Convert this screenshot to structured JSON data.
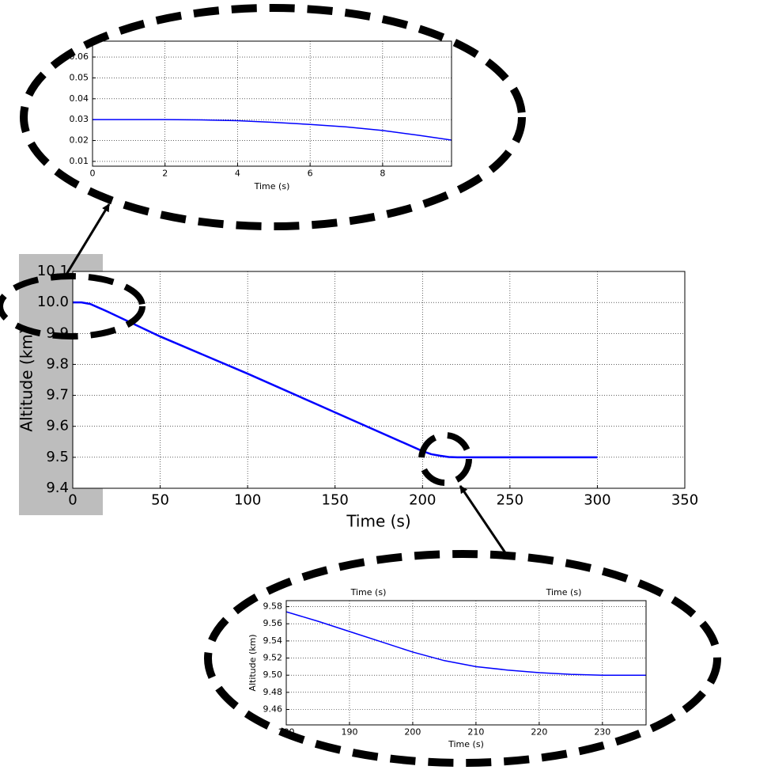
{
  "chart_data": [
    {
      "type": "line",
      "x_label": "Time (s)",
      "y_label": "Altitude (km)",
      "x": [
        0,
        5,
        10,
        20,
        50,
        100,
        150,
        200,
        205,
        210,
        215,
        220,
        250,
        300
      ],
      "series": [
        {
          "color": "#0000ff",
          "values": [
            10.0,
            10.0,
            9.995,
            9.97,
            9.89,
            9.77,
            9.645,
            9.52,
            9.51,
            9.505,
            9.501,
            9.5,
            9.5,
            9.5
          ]
        }
      ],
      "xlim": [
        0,
        350
      ],
      "xticks": [
        0,
        50,
        100,
        150,
        200,
        250,
        300,
        350
      ],
      "ylim": [
        9.4,
        10.1
      ],
      "yticks": [
        9.4,
        9.5,
        9.6,
        9.7,
        9.8,
        9.9,
        {
          "value": 10,
          "label": "10.0"
        },
        10.1
      ],
      "grid": true
    },
    {
      "type": "line",
      "x_label": "Time (s)",
      "x": [
        0,
        1,
        2,
        3,
        4,
        5,
        6,
        7,
        8,
        9,
        9.9
      ],
      "series": [
        {
          "color": "#0000ff",
          "values": [
            0.03,
            0.03,
            0.03,
            0.0299,
            0.0295,
            0.0287,
            0.0277,
            0.0265,
            0.0248,
            0.0225,
            0.0202
          ]
        }
      ],
      "xlim": [
        0,
        9.9
      ],
      "xticks": [
        0,
        2,
        4,
        6,
        8
      ],
      "ylim": [
        0.0077,
        0.0676
      ],
      "yticks": [
        0.01,
        0.02,
        0.03,
        0.04,
        0.05,
        0.06
      ],
      "grid": true
    },
    {
      "type": "line",
      "x_label": "Time (s)",
      "y_label": "Altitude (km)",
      "annotations": [
        "Time (s)",
        "Time (s)"
      ],
      "x": [
        180,
        185,
        190,
        195,
        200,
        205,
        210,
        215,
        220,
        225,
        230,
        236.9
      ],
      "series": [
        {
          "color": "#0000ff",
          "values": [
            9.574,
            9.563,
            9.551,
            9.539,
            9.527,
            9.517,
            9.51,
            9.506,
            9.503,
            9.501,
            9.5,
            9.5
          ]
        }
      ],
      "xlim": [
        180,
        236.9
      ],
      "xticks": [
        180,
        190,
        200,
        210,
        220,
        230
      ],
      "ylim": [
        9.442,
        9.587
      ],
      "yticks": [
        9.46,
        9.48,
        {
          "value": 9.5,
          "label": "9.50"
        },
        9.52,
        9.54,
        9.56,
        9.58
      ],
      "grid": true
    }
  ]
}
